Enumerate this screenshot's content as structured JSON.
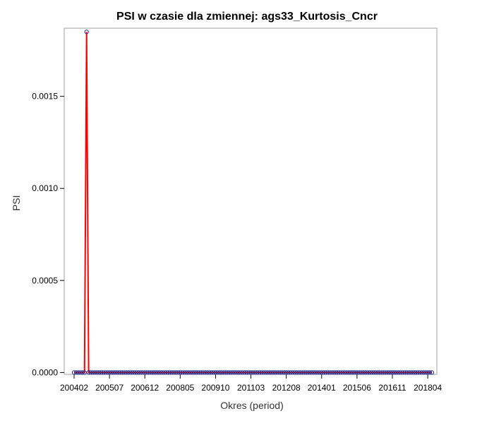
{
  "chart_data": {
    "type": "line",
    "title": "PSI w czasie dla zmiennej: ags33_Kurtosis_Cncr",
    "xlabel": "Okres (period)",
    "ylabel": "PSI",
    "x_tick_labels": [
      "200402",
      "200507",
      "200612",
      "200805",
      "200910",
      "201103",
      "201208",
      "201401",
      "201506",
      "201611",
      "201804"
    ],
    "y_tick_labels": [
      "0.0000",
      "0.0005",
      "0.0010",
      "0.0015"
    ],
    "y_ticks": [
      0,
      0.0005,
      0.001,
      0.0015
    ],
    "ylim": [
      -1e-05,
      0.00187
    ],
    "x_range": [
      "200402",
      "201806"
    ],
    "series": [
      {
        "start_period": "200402",
        "end_period": "201806",
        "spike_period": "200408",
        "spike_value": 0.00185,
        "baseline_value": 0
      }
    ],
    "colors": {
      "line": "#ff0000",
      "marker": "#1f2a8c",
      "frame": "#a0a0a0"
    },
    "grid": false
  }
}
